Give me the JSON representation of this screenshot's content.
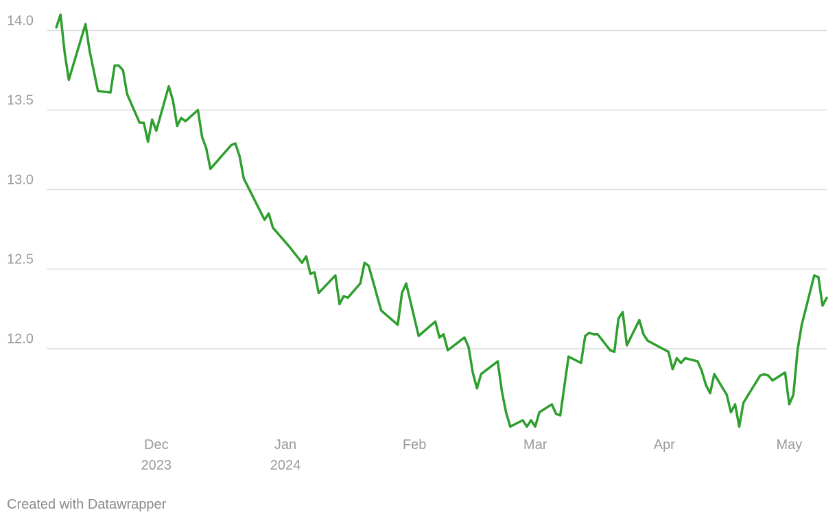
{
  "chart_data": {
    "type": "line",
    "title": "",
    "xlabel": "",
    "ylabel": "",
    "ylim": [
      11.5,
      14.1
    ],
    "xlim": [
      "2023-11-05",
      "2024-05-10"
    ],
    "y_ticks": [
      {
        "value": 12.0,
        "label": "12.0"
      },
      {
        "value": 12.5,
        "label": "12.5"
      },
      {
        "value": 13.0,
        "label": "13.0"
      },
      {
        "value": 13.5,
        "label": "13.5"
      },
      {
        "value": 14.0,
        "label": "14.0"
      }
    ],
    "x_ticks": [
      {
        "date": "2023-12-01",
        "lines": [
          "Dec",
          "2023"
        ]
      },
      {
        "date": "2024-01-01",
        "lines": [
          "Jan",
          "2024"
        ]
      },
      {
        "date": "2024-02-01",
        "lines": [
          "Feb"
        ]
      },
      {
        "date": "2024-03-01",
        "lines": [
          "Mar"
        ]
      },
      {
        "date": "2024-04-01",
        "lines": [
          "Apr"
        ]
      },
      {
        "date": "2024-05-01",
        "lines": [
          "May"
        ]
      }
    ],
    "grid": true,
    "line_color": "#2e9e2e",
    "grid_color": "#dedede",
    "series": [
      {
        "points": [
          [
            "2023-11-07",
            14.02
          ],
          [
            "2023-11-08",
            14.1
          ],
          [
            "2023-11-09",
            13.86
          ],
          [
            "2023-11-10",
            13.69
          ],
          [
            "2023-11-14",
            14.04
          ],
          [
            "2023-11-15",
            13.87
          ],
          [
            "2023-11-17",
            13.62
          ],
          [
            "2023-11-20",
            13.61
          ],
          [
            "2023-11-21",
            13.78
          ],
          [
            "2023-11-22",
            13.78
          ],
          [
            "2023-11-23",
            13.75
          ],
          [
            "2023-11-24",
            13.6
          ],
          [
            "2023-11-27",
            13.42
          ],
          [
            "2023-11-28",
            13.42
          ],
          [
            "2023-11-29",
            13.3
          ],
          [
            "2023-11-30",
            13.44
          ],
          [
            "2023-12-01",
            13.37
          ],
          [
            "2023-12-04",
            13.65
          ],
          [
            "2023-12-05",
            13.56
          ],
          [
            "2023-12-06",
            13.4
          ],
          [
            "2023-12-07",
            13.45
          ],
          [
            "2023-12-08",
            13.43
          ],
          [
            "2023-12-11",
            13.5
          ],
          [
            "2023-12-12",
            13.33
          ],
          [
            "2023-12-13",
            13.26
          ],
          [
            "2023-12-14",
            13.13
          ],
          [
            "2023-12-19",
            13.28
          ],
          [
            "2023-12-20",
            13.29
          ],
          [
            "2023-12-21",
            13.21
          ],
          [
            "2023-12-22",
            13.07
          ],
          [
            "2023-12-27",
            12.81
          ],
          [
            "2023-12-28",
            12.85
          ],
          [
            "2023-12-29",
            12.76
          ],
          [
            "2024-01-02",
            12.64
          ],
          [
            "2024-01-05",
            12.54
          ],
          [
            "2024-01-06",
            12.58
          ],
          [
            "2024-01-07",
            12.47
          ],
          [
            "2024-01-08",
            12.48
          ],
          [
            "2024-01-09",
            12.35
          ],
          [
            "2024-01-13",
            12.46
          ],
          [
            "2024-01-14",
            12.28
          ],
          [
            "2024-01-15",
            12.33
          ],
          [
            "2024-01-16",
            12.32
          ],
          [
            "2024-01-19",
            12.41
          ],
          [
            "2024-01-20",
            12.54
          ],
          [
            "2024-01-21",
            12.52
          ],
          [
            "2024-01-24",
            12.24
          ],
          [
            "2024-01-28",
            12.15
          ],
          [
            "2024-01-29",
            12.35
          ],
          [
            "2024-01-30",
            12.41
          ],
          [
            "2024-02-02",
            12.08
          ],
          [
            "2024-02-06",
            12.17
          ],
          [
            "2024-02-07",
            12.07
          ],
          [
            "2024-02-08",
            12.09
          ],
          [
            "2024-02-09",
            11.99
          ],
          [
            "2024-02-13",
            12.07
          ],
          [
            "2024-02-14",
            12.01
          ],
          [
            "2024-02-15",
            11.85
          ],
          [
            "2024-02-16",
            11.75
          ],
          [
            "2024-02-17",
            11.84
          ],
          [
            "2024-02-21",
            11.92
          ],
          [
            "2024-02-22",
            11.73
          ],
          [
            "2024-02-23",
            11.6
          ],
          [
            "2024-02-24",
            11.51
          ],
          [
            "2024-02-27",
            11.55
          ],
          [
            "2024-02-28",
            11.51
          ],
          [
            "2024-02-29",
            11.55
          ],
          [
            "2024-03-01",
            11.51
          ],
          [
            "2024-03-02",
            11.6
          ],
          [
            "2024-03-05",
            11.65
          ],
          [
            "2024-03-06",
            11.59
          ],
          [
            "2024-03-07",
            11.58
          ],
          [
            "2024-03-09",
            11.95
          ],
          [
            "2024-03-12",
            11.91
          ],
          [
            "2024-03-13",
            12.08
          ],
          [
            "2024-03-14",
            12.1
          ],
          [
            "2024-03-15",
            12.09
          ],
          [
            "2024-03-16",
            12.09
          ],
          [
            "2024-03-19",
            11.99
          ],
          [
            "2024-03-20",
            11.98
          ],
          [
            "2024-03-21",
            12.19
          ],
          [
            "2024-03-22",
            12.23
          ],
          [
            "2024-03-23",
            12.02
          ],
          [
            "2024-03-26",
            12.18
          ],
          [
            "2024-03-27",
            12.09
          ],
          [
            "2024-03-28",
            12.05
          ],
          [
            "2024-04-02",
            11.98
          ],
          [
            "2024-04-03",
            11.87
          ],
          [
            "2024-04-04",
            11.94
          ],
          [
            "2024-04-05",
            11.91
          ],
          [
            "2024-04-06",
            11.94
          ],
          [
            "2024-04-09",
            11.92
          ],
          [
            "2024-04-10",
            11.86
          ],
          [
            "2024-04-11",
            11.77
          ],
          [
            "2024-04-12",
            11.72
          ],
          [
            "2024-04-13",
            11.84
          ],
          [
            "2024-04-16",
            11.71
          ],
          [
            "2024-04-17",
            11.6
          ],
          [
            "2024-04-18",
            11.65
          ],
          [
            "2024-04-19",
            11.51
          ],
          [
            "2024-04-20",
            11.66
          ],
          [
            "2024-04-24",
            11.83
          ],
          [
            "2024-04-25",
            11.84
          ],
          [
            "2024-04-26",
            11.83
          ],
          [
            "2024-04-27",
            11.8
          ],
          [
            "2024-04-30",
            11.85
          ],
          [
            "2024-05-01",
            11.65
          ],
          [
            "2024-05-02",
            11.71
          ],
          [
            "2024-05-03",
            11.99
          ],
          [
            "2024-05-04",
            12.15
          ],
          [
            "2024-05-07",
            12.46
          ],
          [
            "2024-05-08",
            12.45
          ],
          [
            "2024-05-09",
            12.27
          ],
          [
            "2024-05-10",
            12.32
          ]
        ]
      }
    ]
  },
  "footer": {
    "credit": "Created with Datawrapper"
  }
}
